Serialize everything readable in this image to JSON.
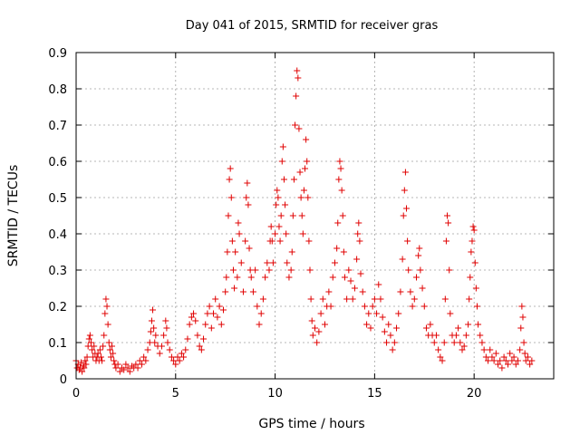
{
  "chart_data": {
    "type": "scatter",
    "title": "Day 041 of 2015, SRMTID for receiver gras",
    "xlabel": "GPS time / hours",
    "ylabel": "SRMTID / TECUs",
    "xlim": [
      0,
      24
    ],
    "ylim": [
      0,
      0.9
    ],
    "xticks": [
      "0",
      "5",
      "10",
      "15",
      "20"
    ],
    "yticks": [
      "0",
      "0.1",
      "0.2",
      "0.3",
      "0.4",
      "0.5",
      "0.6",
      "0.7",
      "0.8",
      "0.9"
    ],
    "grid": true,
    "marker": "+",
    "color": "#e00000",
    "series": [
      {
        "name": "SRMTID",
        "points": [
          [
            0.0,
            0.05
          ],
          [
            0.05,
            0.03
          ],
          [
            0.1,
            0.04
          ],
          [
            0.15,
            0.025
          ],
          [
            0.2,
            0.03
          ],
          [
            0.25,
            0.045
          ],
          [
            0.3,
            0.02
          ],
          [
            0.35,
            0.035
          ],
          [
            0.4,
            0.03
          ],
          [
            0.45,
            0.05
          ],
          [
            0.5,
            0.04
          ],
          [
            0.55,
            0.06
          ],
          [
            0.6,
            0.09
          ],
          [
            0.65,
            0.11
          ],
          [
            0.7,
            0.12
          ],
          [
            0.75,
            0.1
          ],
          [
            0.8,
            0.08
          ],
          [
            0.85,
            0.06
          ],
          [
            0.9,
            0.09
          ],
          [
            0.95,
            0.07
          ],
          [
            1.0,
            0.05
          ],
          [
            1.05,
            0.06
          ],
          [
            1.1,
            0.07
          ],
          [
            1.15,
            0.05
          ],
          [
            1.2,
            0.08
          ],
          [
            1.25,
            0.06
          ],
          [
            1.3,
            0.05
          ],
          [
            1.35,
            0.09
          ],
          [
            1.4,
            0.12
          ],
          [
            1.45,
            0.18
          ],
          [
            1.5,
            0.22
          ],
          [
            1.55,
            0.2
          ],
          [
            1.6,
            0.15
          ],
          [
            1.65,
            0.1
          ],
          [
            1.7,
            0.08
          ],
          [
            1.75,
            0.06
          ],
          [
            1.8,
            0.09
          ],
          [
            1.85,
            0.07
          ],
          [
            1.9,
            0.05
          ],
          [
            1.95,
            0.04
          ],
          [
            2.0,
            0.03
          ],
          [
            2.1,
            0.04
          ],
          [
            2.2,
            0.02
          ],
          [
            2.3,
            0.03
          ],
          [
            2.4,
            0.025
          ],
          [
            2.5,
            0.04
          ],
          [
            2.6,
            0.03
          ],
          [
            2.7,
            0.02
          ],
          [
            2.8,
            0.035
          ],
          [
            2.9,
            0.03
          ],
          [
            3.0,
            0.04
          ],
          [
            3.1,
            0.03
          ],
          [
            3.2,
            0.05
          ],
          [
            3.3,
            0.04
          ],
          [
            3.4,
            0.06
          ],
          [
            3.5,
            0.05
          ],
          [
            3.6,
            0.08
          ],
          [
            3.7,
            0.1
          ],
          [
            3.75,
            0.13
          ],
          [
            3.8,
            0.16
          ],
          [
            3.85,
            0.19
          ],
          [
            3.9,
            0.14
          ],
          [
            3.95,
            0.1
          ],
          [
            4.0,
            0.12
          ],
          [
            4.1,
            0.09
          ],
          [
            4.2,
            0.07
          ],
          [
            4.3,
            0.09
          ],
          [
            4.4,
            0.12
          ],
          [
            4.5,
            0.16
          ],
          [
            4.55,
            0.14
          ],
          [
            4.6,
            0.1
          ],
          [
            4.7,
            0.08
          ],
          [
            4.8,
            0.06
          ],
          [
            4.9,
            0.05
          ],
          [
            5.0,
            0.04
          ],
          [
            5.1,
            0.06
          ],
          [
            5.2,
            0.05
          ],
          [
            5.3,
            0.07
          ],
          [
            5.4,
            0.06
          ],
          [
            5.5,
            0.08
          ],
          [
            5.6,
            0.11
          ],
          [
            5.7,
            0.15
          ],
          [
            5.8,
            0.17
          ],
          [
            5.9,
            0.18
          ],
          [
            6.0,
            0.16
          ],
          [
            6.1,
            0.12
          ],
          [
            6.2,
            0.09
          ],
          [
            6.3,
            0.08
          ],
          [
            6.4,
            0.11
          ],
          [
            6.5,
            0.15
          ],
          [
            6.6,
            0.18
          ],
          [
            6.7,
            0.2
          ],
          [
            6.8,
            0.14
          ],
          [
            6.9,
            0.18
          ],
          [
            7.0,
            0.22
          ],
          [
            7.1,
            0.17
          ],
          [
            7.2,
            0.2
          ],
          [
            7.3,
            0.15
          ],
          [
            7.4,
            0.19
          ],
          [
            7.5,
            0.24
          ],
          [
            7.55,
            0.28
          ],
          [
            7.6,
            0.35
          ],
          [
            7.65,
            0.45
          ],
          [
            7.7,
            0.55
          ],
          [
            7.75,
            0.58
          ],
          [
            7.8,
            0.5
          ],
          [
            7.85,
            0.38
          ],
          [
            7.9,
            0.3
          ],
          [
            7.95,
            0.25
          ],
          [
            8.0,
            0.35
          ],
          [
            8.1,
            0.28
          ],
          [
            8.15,
            0.43
          ],
          [
            8.2,
            0.4
          ],
          [
            8.3,
            0.32
          ],
          [
            8.4,
            0.24
          ],
          [
            8.5,
            0.38
          ],
          [
            8.55,
            0.5
          ],
          [
            8.6,
            0.54
          ],
          [
            8.65,
            0.48
          ],
          [
            8.7,
            0.36
          ],
          [
            8.75,
            0.3
          ],
          [
            8.8,
            0.28
          ],
          [
            8.9,
            0.24
          ],
          [
            9.0,
            0.3
          ],
          [
            9.1,
            0.2
          ],
          [
            9.2,
            0.15
          ],
          [
            9.3,
            0.18
          ],
          [
            9.4,
            0.22
          ],
          [
            9.5,
            0.28
          ],
          [
            9.6,
            0.32
          ],
          [
            9.7,
            0.3
          ],
          [
            9.75,
            0.38
          ],
          [
            9.8,
            0.42
          ],
          [
            9.85,
            0.38
          ],
          [
            9.9,
            0.32
          ],
          [
            10.0,
            0.4
          ],
          [
            10.05,
            0.48
          ],
          [
            10.1,
            0.52
          ],
          [
            10.15,
            0.5
          ],
          [
            10.2,
            0.42
          ],
          [
            10.25,
            0.38
          ],
          [
            10.3,
            0.45
          ],
          [
            10.35,
            0.6
          ],
          [
            10.4,
            0.64
          ],
          [
            10.45,
            0.55
          ],
          [
            10.5,
            0.48
          ],
          [
            10.55,
            0.4
          ],
          [
            10.6,
            0.32
          ],
          [
            10.7,
            0.28
          ],
          [
            10.8,
            0.3
          ],
          [
            10.85,
            0.35
          ],
          [
            10.9,
            0.45
          ],
          [
            10.95,
            0.55
          ],
          [
            11.0,
            0.7
          ],
          [
            11.05,
            0.78
          ],
          [
            11.1,
            0.85
          ],
          [
            11.15,
            0.83
          ],
          [
            11.2,
            0.69
          ],
          [
            11.25,
            0.57
          ],
          [
            11.3,
            0.5
          ],
          [
            11.35,
            0.45
          ],
          [
            11.4,
            0.4
          ],
          [
            11.45,
            0.52
          ],
          [
            11.5,
            0.58
          ],
          [
            11.55,
            0.66
          ],
          [
            11.6,
            0.6
          ],
          [
            11.65,
            0.5
          ],
          [
            11.7,
            0.38
          ],
          [
            11.75,
            0.3
          ],
          [
            11.8,
            0.22
          ],
          [
            11.85,
            0.16
          ],
          [
            11.9,
            0.12
          ],
          [
            12.0,
            0.14
          ],
          [
            12.1,
            0.1
          ],
          [
            12.2,
            0.13
          ],
          [
            12.3,
            0.18
          ],
          [
            12.4,
            0.22
          ],
          [
            12.5,
            0.15
          ],
          [
            12.6,
            0.2
          ],
          [
            12.7,
            0.24
          ],
          [
            12.8,
            0.2
          ],
          [
            12.9,
            0.28
          ],
          [
            13.0,
            0.32
          ],
          [
            13.1,
            0.36
          ],
          [
            13.15,
            0.43
          ],
          [
            13.2,
            0.55
          ],
          [
            13.25,
            0.6
          ],
          [
            13.3,
            0.58
          ],
          [
            13.35,
            0.52
          ],
          [
            13.4,
            0.45
          ],
          [
            13.45,
            0.35
          ],
          [
            13.5,
            0.28
          ],
          [
            13.6,
            0.22
          ],
          [
            13.7,
            0.3
          ],
          [
            13.8,
            0.27
          ],
          [
            13.9,
            0.22
          ],
          [
            14.0,
            0.25
          ],
          [
            14.1,
            0.33
          ],
          [
            14.15,
            0.4
          ],
          [
            14.2,
            0.43
          ],
          [
            14.25,
            0.38
          ],
          [
            14.3,
            0.29
          ],
          [
            14.4,
            0.24
          ],
          [
            14.5,
            0.2
          ],
          [
            14.6,
            0.15
          ],
          [
            14.7,
            0.18
          ],
          [
            14.8,
            0.14
          ],
          [
            14.9,
            0.2
          ],
          [
            15.0,
            0.22
          ],
          [
            15.1,
            0.18
          ],
          [
            15.2,
            0.26
          ],
          [
            15.3,
            0.22
          ],
          [
            15.4,
            0.17
          ],
          [
            15.5,
            0.13
          ],
          [
            15.6,
            0.1
          ],
          [
            15.7,
            0.15
          ],
          [
            15.8,
            0.12
          ],
          [
            15.9,
            0.08
          ],
          [
            16.0,
            0.1
          ],
          [
            16.1,
            0.14
          ],
          [
            16.2,
            0.18
          ],
          [
            16.3,
            0.24
          ],
          [
            16.4,
            0.33
          ],
          [
            16.45,
            0.45
          ],
          [
            16.5,
            0.52
          ],
          [
            16.55,
            0.57
          ],
          [
            16.6,
            0.47
          ],
          [
            16.65,
            0.38
          ],
          [
            16.7,
            0.3
          ],
          [
            16.8,
            0.24
          ],
          [
            16.9,
            0.2
          ],
          [
            17.0,
            0.22
          ],
          [
            17.1,
            0.28
          ],
          [
            17.2,
            0.34
          ],
          [
            17.25,
            0.36
          ],
          [
            17.3,
            0.3
          ],
          [
            17.4,
            0.25
          ],
          [
            17.5,
            0.2
          ],
          [
            17.6,
            0.14
          ],
          [
            17.7,
            0.12
          ],
          [
            17.8,
            0.15
          ],
          [
            17.9,
            0.12
          ],
          [
            18.0,
            0.1
          ],
          [
            18.1,
            0.12
          ],
          [
            18.2,
            0.08
          ],
          [
            18.3,
            0.06
          ],
          [
            18.4,
            0.05
          ],
          [
            18.5,
            0.1
          ],
          [
            18.55,
            0.22
          ],
          [
            18.6,
            0.38
          ],
          [
            18.65,
            0.45
          ],
          [
            18.7,
            0.43
          ],
          [
            18.75,
            0.3
          ],
          [
            18.8,
            0.18
          ],
          [
            18.9,
            0.12
          ],
          [
            19.0,
            0.1
          ],
          [
            19.1,
            0.12
          ],
          [
            19.2,
            0.14
          ],
          [
            19.3,
            0.1
          ],
          [
            19.4,
            0.08
          ],
          [
            19.5,
            0.09
          ],
          [
            19.6,
            0.12
          ],
          [
            19.7,
            0.15
          ],
          [
            19.75,
            0.22
          ],
          [
            19.8,
            0.28
          ],
          [
            19.85,
            0.35
          ],
          [
            19.9,
            0.38
          ],
          [
            19.95,
            0.42
          ],
          [
            20.0,
            0.41
          ],
          [
            20.05,
            0.32
          ],
          [
            20.1,
            0.25
          ],
          [
            20.15,
            0.2
          ],
          [
            20.2,
            0.15
          ],
          [
            20.3,
            0.12
          ],
          [
            20.4,
            0.1
          ],
          [
            20.5,
            0.08
          ],
          [
            20.6,
            0.06
          ],
          [
            20.7,
            0.05
          ],
          [
            20.8,
            0.08
          ],
          [
            20.9,
            0.06
          ],
          [
            21.0,
            0.05
          ],
          [
            21.1,
            0.07
          ],
          [
            21.2,
            0.04
          ],
          [
            21.3,
            0.05
          ],
          [
            21.4,
            0.03
          ],
          [
            21.5,
            0.06
          ],
          [
            21.6,
            0.05
          ],
          [
            21.7,
            0.04
          ],
          [
            21.8,
            0.07
          ],
          [
            21.9,
            0.05
          ],
          [
            22.0,
            0.06
          ],
          [
            22.1,
            0.04
          ],
          [
            22.2,
            0.05
          ],
          [
            22.3,
            0.08
          ],
          [
            22.35,
            0.14
          ],
          [
            22.4,
            0.2
          ],
          [
            22.45,
            0.17
          ],
          [
            22.5,
            0.1
          ],
          [
            22.55,
            0.07
          ],
          [
            22.6,
            0.05
          ],
          [
            22.7,
            0.06
          ],
          [
            22.8,
            0.04
          ],
          [
            22.9,
            0.05
          ]
        ]
      }
    ]
  }
}
